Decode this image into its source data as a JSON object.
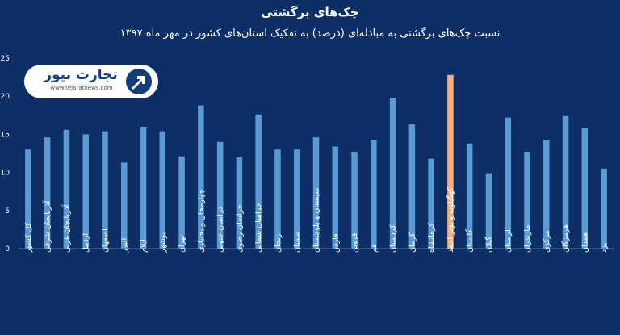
{
  "chart_data": {
    "type": "bar",
    "title": "چک‌های برگشتی",
    "subtitle": "نسبت چک‌های برگشتی به مبادله‌ای (درصد) به تفکیک استان‌های کشور در مهر ماه ۱۳۹۷",
    "xlabel": "",
    "ylabel": "",
    "ylim": [
      0,
      25
    ],
    "yticks": [
      "0",
      "5",
      "10",
      "15",
      "20",
      "25"
    ],
    "grid": false,
    "legend": "none",
    "bar_color": "#5b9bd5",
    "highlight_color": "#f4b183",
    "highlight_category": "کهگیلویه و بویر احمد",
    "categories": [
      "کل کشور",
      "آذربایجان شرقی",
      "آذربایجان غربی",
      "اردبیل",
      "اصفهان",
      "البرز",
      "ایلام",
      "بوشهر",
      "تهران",
      "چهارمحال و بختیاری",
      "خراسان جنوبی",
      "خراسان رضوی",
      "خراسان شمالی",
      "زنجان",
      "سمنان",
      "سیستان و بلوچستان",
      "فارس",
      "قزوین",
      "قم",
      "کردستان",
      "کرمان",
      "کرمانشاه",
      "کهگیلویه و بویر احمد",
      "گلستان",
      "گیلان",
      "لرستان",
      "مازندران",
      "مرکزی",
      "هرمزگان",
      "همدان",
      "یزد"
    ],
    "values": [
      13.0,
      14.6,
      15.6,
      15.0,
      15.4,
      11.3,
      16.0,
      15.4,
      12.1,
      18.8,
      14.0,
      12.0,
      17.6,
      13.0,
      13.0,
      14.6,
      13.4,
      12.7,
      14.3,
      19.8,
      16.3,
      11.8,
      22.8,
      13.8,
      9.9,
      17.2,
      12.7,
      14.3,
      17.4,
      15.8,
      10.5
    ]
  },
  "logo": {
    "name": "تجارت نیوز",
    "url": "www.tejaratnews.com"
  }
}
